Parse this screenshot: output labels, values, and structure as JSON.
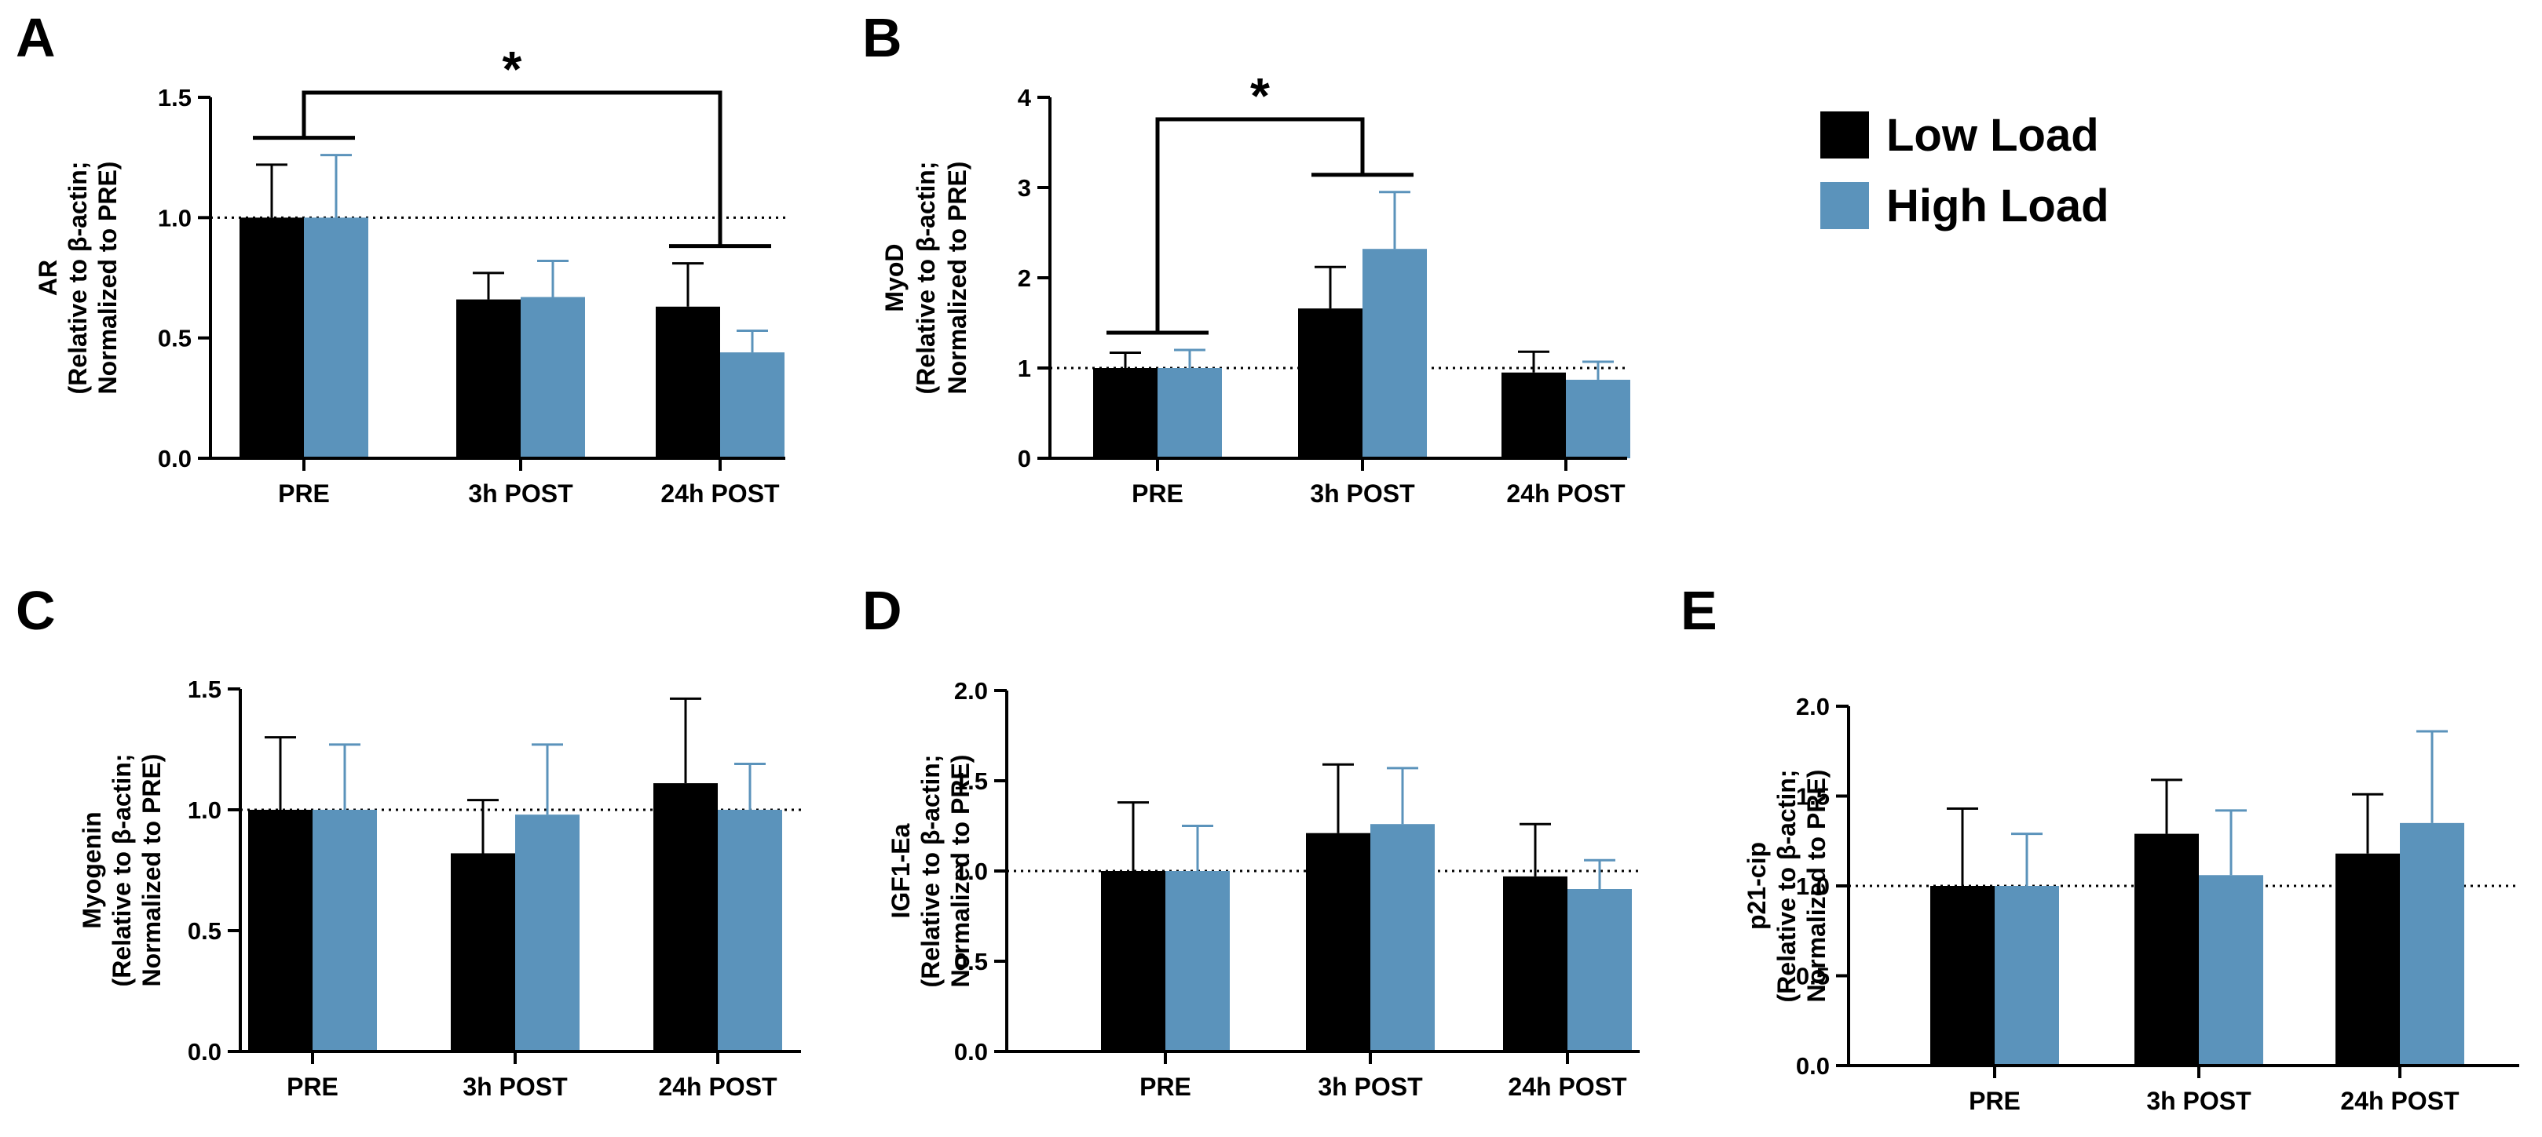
{
  "legend": {
    "items": [
      {
        "label": "Low Load",
        "color": "#000000"
      },
      {
        "label": "High Load",
        "color": "#5b93bb"
      }
    ]
  },
  "colors": {
    "low": "#000000",
    "high": "#5b93bb",
    "axis": "#000000"
  },
  "chart_data": [
    {
      "panel": "A",
      "type": "bar",
      "categories": [
        "PRE",
        "3h POST",
        "24h POST"
      ],
      "ylabel_lines": [
        "AR",
        "(Relative to β-actin;",
        "Normalized to PRE)"
      ],
      "ylim": [
        0,
        1.5
      ],
      "yticks": [
        0.0,
        0.5,
        1.0,
        1.5
      ],
      "yticklabels": [
        "0.0",
        "0.5",
        "1.0",
        "1.5"
      ],
      "reference_line": 1.0,
      "series": [
        {
          "name": "Low Load",
          "values": [
            1.0,
            0.66,
            0.63
          ],
          "errors": [
            0.22,
            0.11,
            0.18
          ]
        },
        {
          "name": "High Load",
          "values": [
            1.0,
            0.67,
            0.44
          ],
          "errors": [
            0.26,
            0.15,
            0.09
          ]
        }
      ],
      "significance": {
        "from": "PRE",
        "to": "24h POST",
        "label": "*"
      }
    },
    {
      "panel": "B",
      "type": "bar",
      "categories": [
        "PRE",
        "3h POST",
        "24h POST"
      ],
      "ylabel_lines": [
        "MyoD",
        "(Relative to β-actin;",
        "Normalized to PRE)"
      ],
      "ylim": [
        0,
        4
      ],
      "yticks": [
        0,
        1,
        2,
        3,
        4
      ],
      "yticklabels": [
        "0",
        "1",
        "2",
        "3",
        "4"
      ],
      "reference_line": 1.0,
      "series": [
        {
          "name": "Low Load",
          "values": [
            1.0,
            1.66,
            0.95
          ],
          "errors": [
            0.17,
            0.46,
            0.23
          ]
        },
        {
          "name": "High Load",
          "values": [
            1.0,
            2.32,
            0.87
          ],
          "errors": [
            0.2,
            0.63,
            0.2
          ]
        }
      ],
      "significance": {
        "from": "PRE",
        "to": "3h POST",
        "label": "*"
      }
    },
    {
      "panel": "C",
      "type": "bar",
      "categories": [
        "PRE",
        "3h POST",
        "24h POST"
      ],
      "ylabel_lines": [
        "Myogenin",
        "(Relative to β-actin;",
        "Normalized to PRE)"
      ],
      "ylim": [
        0,
        1.5
      ],
      "yticks": [
        0.0,
        0.5,
        1.0,
        1.5
      ],
      "yticklabels": [
        "0.0",
        "0.5",
        "1.0",
        "1.5"
      ],
      "reference_line": 1.0,
      "series": [
        {
          "name": "Low Load",
          "values": [
            1.0,
            0.82,
            1.11
          ],
          "errors": [
            0.3,
            0.22,
            0.35
          ]
        },
        {
          "name": "High Load",
          "values": [
            1.0,
            0.98,
            1.0
          ],
          "errors": [
            0.27,
            0.29,
            0.19
          ]
        }
      ]
    },
    {
      "panel": "D",
      "type": "bar",
      "categories": [
        "PRE",
        "3h POST",
        "24h POST"
      ],
      "ylabel_lines": [
        "IGF1-Ea",
        "(Relative to β-actin;",
        "Normalized to PRE)"
      ],
      "ylim": [
        0,
        2.0
      ],
      "yticks": [
        0.0,
        0.5,
        1.0,
        1.5,
        2.0
      ],
      "yticklabels": [
        "0.0",
        "0.5",
        "1.0",
        "1.5",
        "2.0"
      ],
      "reference_line": 1.0,
      "series": [
        {
          "name": "Low Load",
          "values": [
            1.0,
            1.21,
            0.97
          ],
          "errors": [
            0.38,
            0.38,
            0.29
          ]
        },
        {
          "name": "High Load",
          "values": [
            1.0,
            1.26,
            0.9
          ],
          "errors": [
            0.25,
            0.31,
            0.16
          ]
        }
      ]
    },
    {
      "panel": "E",
      "type": "bar",
      "categories": [
        "PRE",
        "3h POST",
        "24h POST"
      ],
      "ylabel_lines": [
        "p21-cip",
        "(Relative to β-actin;",
        "Normalized to PRE)"
      ],
      "ylim": [
        0,
        2.0
      ],
      "yticks": [
        0.0,
        0.5,
        1.0,
        1.5,
        2.0
      ],
      "yticklabels": [
        "0.0",
        "0.5",
        "1.0",
        "1.5",
        "2.0"
      ],
      "reference_line": 1.0,
      "series": [
        {
          "name": "Low Load",
          "values": [
            1.0,
            1.29,
            1.18
          ],
          "errors": [
            0.43,
            0.3,
            0.33
          ]
        },
        {
          "name": "High Load",
          "values": [
            1.0,
            1.06,
            1.35
          ],
          "errors": [
            0.29,
            0.36,
            0.51
          ]
        }
      ]
    }
  ]
}
